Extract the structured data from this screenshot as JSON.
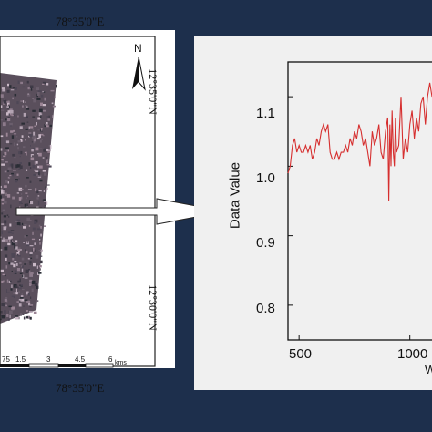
{
  "map": {
    "longitude_top": "78°35'0\"E",
    "longitude_bottom": "78°35'0\"E",
    "latitude_upper": "12°35'0\"N",
    "latitude_lower": "12°30'0\"N",
    "north_label": "N",
    "scale_bar": {
      "ticks": [
        "75",
        "1.5",
        "3",
        "4.5",
        "6"
      ],
      "unit": "kms"
    }
  },
  "colors": {
    "background": "#1d2f4c",
    "plot_line": "#d62f2f",
    "panel": "#f0f0f0"
  },
  "chart_data": {
    "type": "line",
    "ylabel": "Data Value",
    "xlabel": "W",
    "xlim": [
      450,
      1100
    ],
    "ylim": [
      0.75,
      1.15
    ],
    "yticks": [
      "0.8",
      "0.9",
      "1.0",
      "1.1"
    ],
    "xticks": [
      "500",
      "1000"
    ],
    "series": [
      {
        "x": [
          450,
          460,
          470,
          480,
          490,
          500,
          510,
          520,
          530,
          540,
          550,
          560,
          570,
          580,
          590,
          600,
          610,
          620,
          630,
          640,
          650,
          660,
          670,
          680,
          690,
          700,
          710,
          720,
          730,
          740,
          750,
          760,
          770,
          780,
          790,
          800,
          810,
          820,
          830,
          840,
          850,
          860,
          870,
          880,
          890,
          900,
          905,
          910,
          915,
          920,
          925,
          930,
          935,
          940,
          950,
          960,
          970,
          980,
          990,
          1000,
          1010,
          1020,
          1030,
          1040,
          1050,
          1060,
          1070,
          1080,
          1090,
          1100
        ],
        "values": [
          0.99,
          1.0,
          1.03,
          1.04,
          1.02,
          1.03,
          1.02,
          1.02,
          1.03,
          1.02,
          1.03,
          1.01,
          1.02,
          1.04,
          1.03,
          1.05,
          1.06,
          1.05,
          1.06,
          1.02,
          1.01,
          1.01,
          1.02,
          1.01,
          1.02,
          1.02,
          1.03,
          1.02,
          1.04,
          1.03,
          1.05,
          1.04,
          1.06,
          1.05,
          1.03,
          1.04,
          1.02,
          1.0,
          1.05,
          1.03,
          1.04,
          1.06,
          1.02,
          1.01,
          1.05,
          1.07,
          0.95,
          1.06,
          1.0,
          1.08,
          1.02,
          1.0,
          1.07,
          1.02,
          1.03,
          1.1,
          1.01,
          1.04,
          1.02,
          1.06,
          1.08,
          1.04,
          1.07,
          1.05,
          1.09,
          1.1,
          1.06,
          1.1,
          1.12,
          1.1
        ]
      }
    ]
  }
}
